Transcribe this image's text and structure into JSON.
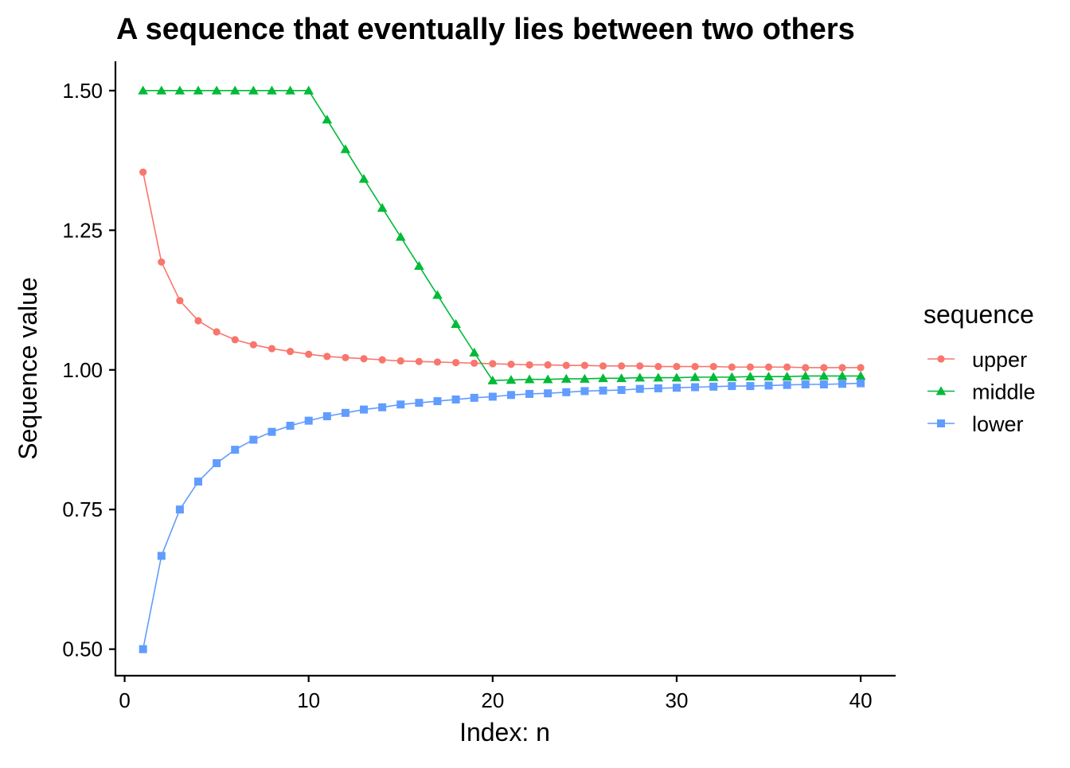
{
  "chart_data": {
    "type": "line",
    "title": "A sequence that eventually lies between two others",
    "xlabel": "Index: n",
    "ylabel": "Sequence value",
    "xlim": [
      -0.5,
      41.9
    ],
    "ylim": [
      0.4525,
      1.5525
    ],
    "x_ticks": [
      0,
      10,
      20,
      30,
      40
    ],
    "x_tick_labels": [
      "0",
      "10",
      "20",
      "30",
      "40"
    ],
    "y_ticks": [
      0.5,
      0.75,
      1.0,
      1.25,
      1.5
    ],
    "y_tick_labels": [
      "0.50",
      "0.75",
      "1.00",
      "1.25",
      "1.50"
    ],
    "grid": false,
    "legend": {
      "title": "sequence",
      "position": "right"
    },
    "x": [
      1,
      2,
      3,
      4,
      5,
      6,
      7,
      8,
      9,
      10,
      11,
      12,
      13,
      14,
      15,
      16,
      17,
      18,
      19,
      20,
      21,
      22,
      23,
      24,
      25,
      26,
      27,
      28,
      29,
      30,
      31,
      32,
      33,
      34,
      35,
      36,
      37,
      38,
      39,
      40
    ],
    "series": [
      {
        "name": "upper",
        "color": "#F8766D",
        "marker": "circle",
        "values": [
          1.354,
          1.193,
          1.124,
          1.088,
          1.068,
          1.054,
          1.045,
          1.038,
          1.033,
          1.028,
          1.024,
          1.022,
          1.02,
          1.018,
          1.016,
          1.015,
          1.014,
          1.013,
          1.012,
          1.011,
          1.01,
          1.009,
          1.009,
          1.008,
          1.008,
          1.007,
          1.007,
          1.007,
          1.006,
          1.006,
          1.006,
          1.006,
          1.005,
          1.005,
          1.005,
          1.005,
          1.004,
          1.004,
          1.004,
          1.004
        ]
      },
      {
        "name": "middle",
        "color": "#00BA38",
        "marker": "triangle",
        "values": [
          1.5,
          1.5,
          1.5,
          1.5,
          1.5,
          1.5,
          1.5,
          1.5,
          1.5,
          1.5,
          1.448,
          1.395,
          1.342,
          1.29,
          1.238,
          1.186,
          1.134,
          1.082,
          1.031,
          0.981,
          0.982,
          0.983,
          0.983,
          0.984,
          0.984,
          0.985,
          0.985,
          0.986,
          0.986,
          0.986,
          0.987,
          0.987,
          0.987,
          0.988,
          0.988,
          0.988,
          0.989,
          0.989,
          0.989,
          0.989
        ]
      },
      {
        "name": "lower",
        "color": "#619CFF",
        "marker": "square",
        "values": [
          0.5,
          0.667,
          0.75,
          0.8,
          0.833,
          0.857,
          0.875,
          0.889,
          0.9,
          0.909,
          0.917,
          0.923,
          0.929,
          0.933,
          0.938,
          0.941,
          0.944,
          0.947,
          0.95,
          0.952,
          0.955,
          0.957,
          0.958,
          0.96,
          0.962,
          0.963,
          0.964,
          0.966,
          0.967,
          0.968,
          0.969,
          0.97,
          0.971,
          0.971,
          0.972,
          0.973,
          0.974,
          0.974,
          0.975,
          0.976
        ]
      }
    ]
  }
}
